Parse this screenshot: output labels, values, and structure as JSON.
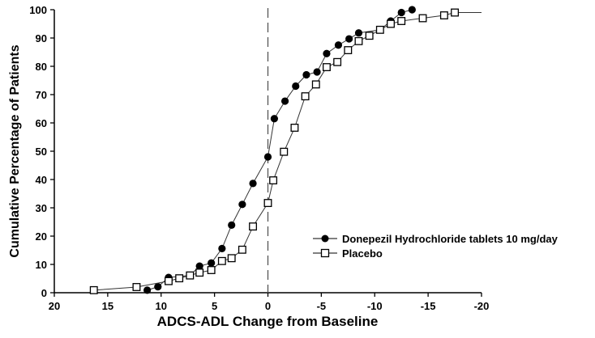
{
  "chart_data": {
    "type": "line",
    "title": "",
    "xlabel": "ADCS-ADL Change from Baseline",
    "ylabel": "Cumulative Percentage of Patients",
    "xlim": [
      20,
      -20
    ],
    "ylim": [
      0,
      100
    ],
    "x_reversed": true,
    "xticks": [
      "20",
      "15",
      "10",
      "5",
      "0",
      "-5",
      "-10",
      "-15",
      "-20"
    ],
    "yticks": [
      "0",
      "10",
      "20",
      "30",
      "40",
      "50",
      "60",
      "70",
      "80",
      "90",
      "100"
    ],
    "grid": false,
    "reference_line": {
      "x": 0,
      "style": "dashed"
    },
    "legend_position": "right",
    "series": [
      {
        "name": "Donepezil Hydrochloride tablets 10 mg/day",
        "marker": "filled-circle",
        "color": "#000000",
        "x": [
          11.3,
          10.3,
          9.3,
          7.3,
          6.4,
          5.3,
          4.3,
          3.4,
          2.4,
          1.4,
          0,
          -0.6,
          -1.6,
          -2.6,
          -3.6,
          -4.6,
          -5.5,
          -6.6,
          -7.6,
          -8.5,
          -10.5,
          -11.5,
          -12.5,
          -13.5
        ],
        "y": [
          0.9,
          2.1,
          5.4,
          6.1,
          9.4,
          10.5,
          15.6,
          23.9,
          31.2,
          38.6,
          48,
          61.5,
          67.7,
          73,
          77,
          78,
          84.5,
          87.5,
          89.7,
          91.8,
          92.9,
          96,
          99,
          100
        ]
      },
      {
        "name": "Placebo",
        "marker": "open-square",
        "color": "#000000",
        "x": [
          16.3,
          12.3,
          9.3,
          8.3,
          7.3,
          6.4,
          5.3,
          4.3,
          3.4,
          2.4,
          1.4,
          0,
          -0.5,
          -1.5,
          -2.5,
          -3.5,
          -4.5,
          -5.5,
          -6.5,
          -7.5,
          -8.5,
          -9.5,
          -10.5,
          -11.5,
          -12.5,
          -14.5,
          -16.5,
          -17.5
        ],
        "y": [
          0.9,
          2,
          4.1,
          5.1,
          6.1,
          7.1,
          8,
          11.2,
          12.2,
          15.2,
          23.4,
          31.7,
          39.7,
          49.8,
          58.3,
          69.4,
          73.6,
          79.7,
          81.5,
          85.7,
          88.9,
          90.8,
          92.9,
          95,
          96,
          97,
          98,
          99
        ]
      }
    ]
  }
}
